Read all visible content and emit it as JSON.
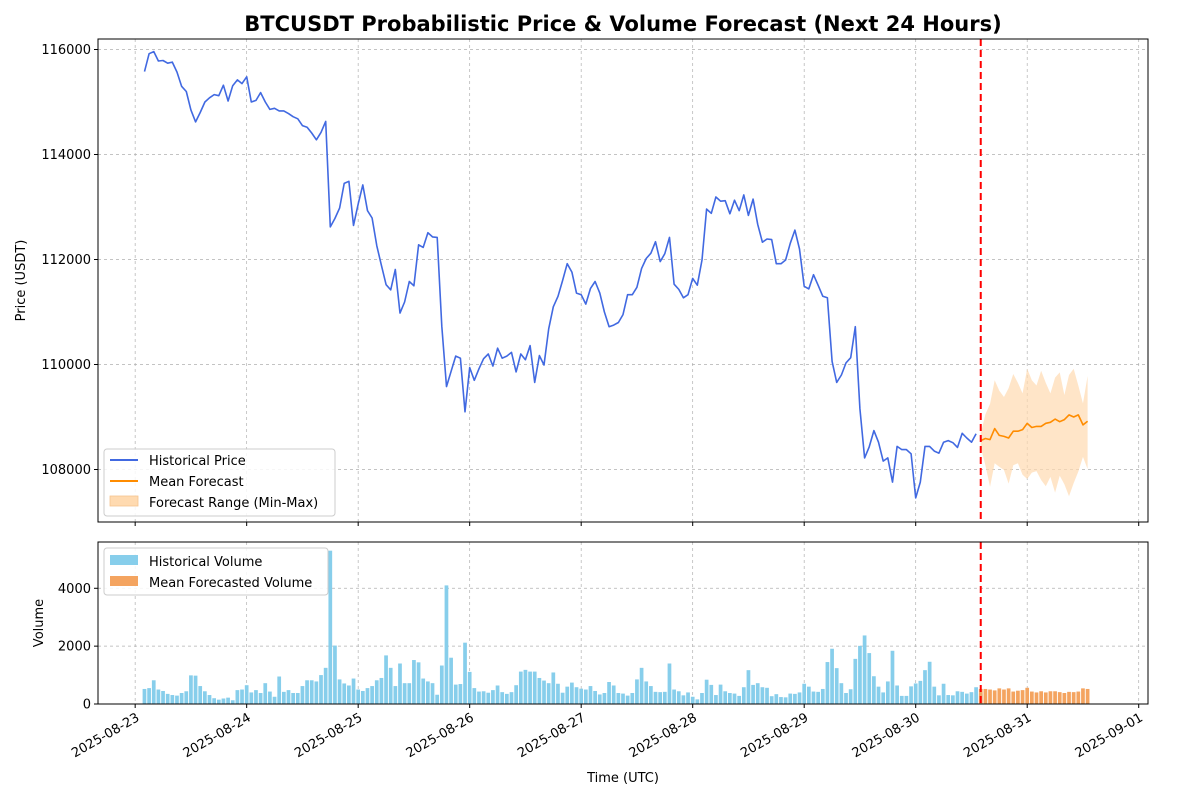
{
  "chart_data": [
    {
      "type": "line",
      "title": "BTCUSDT Probabilistic Price & Volume Forecast (Next 24 Hours)",
      "xlabel": "",
      "ylabel": "Price (USDT)",
      "xlim": [
        "2025-08-22T16:00",
        "2025-09-01T02:00"
      ],
      "ylim": [
        107000,
        116200
      ],
      "yticks": [
        108000,
        110000,
        112000,
        114000,
        116000
      ],
      "forecast_start": "2025-08-30T14:00",
      "grid": true,
      "legend_position": "lower-left",
      "series": [
        {
          "name": "Historical Price",
          "color": "#4169e1",
          "x_start": "2025-08-23T02:00",
          "step_hours": 1,
          "values": [
            115580,
            115920,
            115960,
            115780,
            115790,
            115740,
            115760,
            115570,
            115300,
            115200,
            114850,
            114620,
            114800,
            115000,
            115080,
            115140,
            115120,
            115320,
            115020,
            115310,
            115420,
            115350,
            115480,
            115000,
            115030,
            115180,
            115000,
            114860,
            114880,
            114830,
            114830,
            114780,
            114720,
            114680,
            114550,
            114520,
            114410,
            114280,
            114420,
            114630,
            112620,
            112780,
            112980,
            113450,
            113490,
            112650,
            113060,
            113420,
            112930,
            112790,
            112260,
            111890,
            111520,
            111420,
            111810,
            110980,
            111190,
            111580,
            111500,
            112280,
            112230,
            112510,
            112430,
            112420,
            110730,
            109580,
            109870,
            110160,
            110120,
            109100,
            109940,
            109700,
            109920,
            110110,
            110200,
            109970,
            110310,
            110120,
            110160,
            110230,
            109860,
            110200,
            110090,
            110360,
            109660,
            110170,
            109990,
            110680,
            111100,
            111300,
            111600,
            111920,
            111760,
            111360,
            111330,
            111150,
            111450,
            111580,
            111360,
            111000,
            110720,
            110750,
            110800,
            110950,
            111330,
            111330,
            111470,
            111830,
            112020,
            112120,
            112340,
            111960,
            112110,
            112420,
            111530,
            111430,
            111270,
            111330,
            111640,
            111510,
            111990,
            112960,
            112880,
            113190,
            113110,
            113120,
            112870,
            113130,
            112930,
            113230,
            112840,
            113150,
            112670,
            112330,
            112390,
            112380,
            111920,
            111920,
            111990,
            112310,
            112560,
            112200,
            111490,
            111440,
            111710,
            111510,
            111300,
            111270,
            110060,
            109660,
            109800,
            110030,
            110130,
            110720,
            109160,
            108220,
            108430,
            108740,
            108520,
            108160,
            108220,
            107760,
            108440,
            108380,
            108380,
            108300,
            107460,
            107760,
            108440,
            108440,
            108350,
            108310,
            108520,
            108550,
            108510,
            108420,
            108690,
            108600,
            108520,
            108680
          ]
        },
        {
          "name": "Mean Forecast",
          "color": "#ff8c00",
          "x_start": "2025-08-30T14:00",
          "step_hours": 1,
          "values": [
            108550,
            108590,
            108570,
            108780,
            108650,
            108630,
            108600,
            108730,
            108730,
            108760,
            108880,
            108800,
            108820,
            108820,
            108880,
            108900,
            108960,
            108910,
            108950,
            109040,
            109000,
            109040,
            108850,
            108920
          ]
        }
      ],
      "band": {
        "name": "Forecast Range (Min-Max)",
        "color": "#ffdab0",
        "x_start": "2025-08-30T14:00",
        "step_hours": 1,
        "upper": [
          108680,
          109050,
          109250,
          109700,
          109500,
          109380,
          109550,
          109820,
          109650,
          109450,
          109920,
          109700,
          109600,
          109880,
          109650,
          109450,
          109750,
          109850,
          109420,
          109800,
          109920,
          109600,
          109260,
          109780
        ],
        "lower": [
          108430,
          108080,
          107670,
          108120,
          108050,
          107990,
          107730,
          108080,
          108120,
          107900,
          107820,
          107940,
          107970,
          107800,
          107680,
          107860,
          107560,
          107880,
          107720,
          107490,
          107740,
          107960,
          108240,
          108010
        ]
      }
    },
    {
      "type": "bar",
      "xlabel": "Time (UTC)",
      "ylabel": "Volume",
      "ylim": [
        0,
        5600
      ],
      "yticks": [
        0,
        2000,
        4000
      ],
      "xticks": [
        "2025-08-23",
        "2025-08-24",
        "2025-08-25",
        "2025-08-26",
        "2025-08-27",
        "2025-08-28",
        "2025-08-29",
        "2025-08-30",
        "2025-08-31",
        "2025-09-01"
      ],
      "grid": true,
      "legend_position": "upper-left",
      "series": [
        {
          "name": "Historical Volume",
          "color": "#87ceeb",
          "x_start": "2025-08-23T02:00",
          "step_hours": 1,
          "values": [
            520,
            550,
            820,
            500,
            450,
            350,
            310,
            290,
            380,
            440,
            990,
            980,
            620,
            440,
            310,
            200,
            150,
            190,
            220,
            130,
            480,
            500,
            650,
            400,
            480,
            380,
            720,
            430,
            250,
            950,
            420,
            480,
            380,
            380,
            620,
            820,
            820,
            780,
            1000,
            1250,
            5300,
            2020,
            850,
            710,
            640,
            880,
            500,
            450,
            550,
            620,
            820,
            900,
            1680,
            1250,
            620,
            1400,
            720,
            720,
            1520,
            1440,
            880,
            780,
            720,
            320,
            1330,
            4100,
            1600,
            670,
            690,
            2120,
            1110,
            550,
            430,
            440,
            390,
            480,
            640,
            410,
            350,
            410,
            650,
            1120,
            1180,
            1120,
            1120,
            900,
            810,
            720,
            1090,
            700,
            390,
            600,
            740,
            580,
            530,
            500,
            620,
            450,
            330,
            380,
            760,
            640,
            380,
            360,
            290,
            380,
            850,
            1250,
            780,
            620,
            420,
            410,
            420,
            1400,
            500,
            440,
            300,
            400,
            250,
            160,
            380,
            840,
            660,
            310,
            670,
            440,
            380,
            360,
            280,
            580,
            1170,
            660,
            720,
            580,
            560,
            270,
            340,
            240,
            230,
            360,
            350,
            400,
            700,
            600,
            430,
            420,
            520,
            1450,
            1910,
            1240,
            720,
            380,
            510,
            1560,
            2010,
            2370,
            1760,
            960,
            600,
            400,
            780,
            1840,
            640,
            280,
            280,
            610,
            710,
            800,
            1170,
            1460,
            600,
            300,
            700,
            310,
            300,
            440,
            420,
            360,
            410,
            580,
            360
          ]
        },
        {
          "name": "Mean Forecasted Volume",
          "color": "#f4a460",
          "x_start": "2025-08-30T14:00",
          "step_hours": 1,
          "values": [
            520,
            520,
            500,
            470,
            540,
            500,
            540,
            430,
            460,
            480,
            560,
            430,
            400,
            440,
            400,
            440,
            440,
            410,
            380,
            420,
            410,
            430,
            540,
            520
          ]
        }
      ]
    }
  ]
}
